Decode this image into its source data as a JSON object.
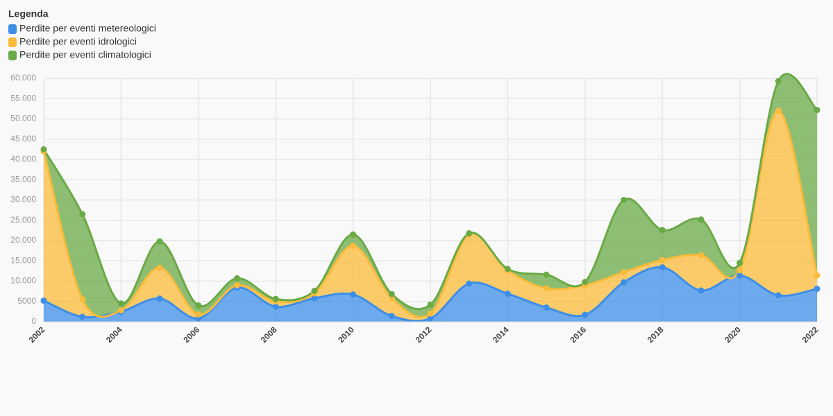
{
  "chart_data": {
    "type": "stacked_area",
    "legend_title": "Legenda",
    "legend_position": "top-left",
    "x": [
      2002,
      2003,
      2004,
      2005,
      2006,
      2007,
      2008,
      2009,
      2010,
      2011,
      2012,
      2013,
      2014,
      2015,
      2016,
      2017,
      2018,
      2019,
      2020,
      2021,
      2022
    ],
    "xlim": [
      2002,
      2022
    ],
    "xticks": [
      2002,
      2004,
      2006,
      2008,
      2010,
      2012,
      2014,
      2016,
      2018,
      2020,
      2022
    ],
    "ylim": [
      0,
      60000
    ],
    "yticks": [
      0,
      5000,
      {
        "value": 10000,
        "label": "10.000"
      },
      {
        "value": 15000,
        "label": "15.000"
      },
      {
        "value": 20000,
        "label": "20.000"
      },
      {
        "value": 25000,
        "label": "25.000"
      },
      {
        "value": 30000,
        "label": "30.000"
      },
      {
        "value": 35000,
        "label": "35.000"
      },
      {
        "value": 40000,
        "label": "40.000"
      },
      {
        "value": 45000,
        "label": "45.000"
      },
      {
        "value": 50000,
        "label": "50.000"
      },
      {
        "value": 55000,
        "label": "55.000"
      },
      {
        "value": 60000,
        "label": "60.000"
      }
    ],
    "grid": true,
    "series": [
      {
        "name": "Perdite per eventi metereologici",
        "color": "#3d8ee8",
        "values": [
          5200,
          1200,
          2500,
          5700,
          800,
          8400,
          3700,
          5800,
          6700,
          1400,
          800,
          9400,
          6900,
          3500,
          1700,
          9700,
          13400,
          7700,
          11400,
          6500,
          8100
        ]
      },
      {
        "name": "Perdite per eventi idrologici",
        "color": "#fbbb3a",
        "values": [
          36800,
          4300,
          300,
          7600,
          1000,
          600,
          1300,
          1200,
          12000,
          4400,
          1200,
          12100,
          5800,
          4700,
          7300,
          2500,
          1800,
          8700,
          1300,
          45500,
          3300
        ]
      },
      {
        "name": "Perdite per eventi climatologici",
        "color": "#6aaa45",
        "values": [
          500,
          21000,
          1700,
          6500,
          2200,
          1700,
          600,
          600,
          2800,
          1000,
          2200,
          300,
          300,
          3400,
          800,
          17800,
          7400,
          8800,
          1800,
          7300,
          40800
        ]
      }
    ]
  }
}
